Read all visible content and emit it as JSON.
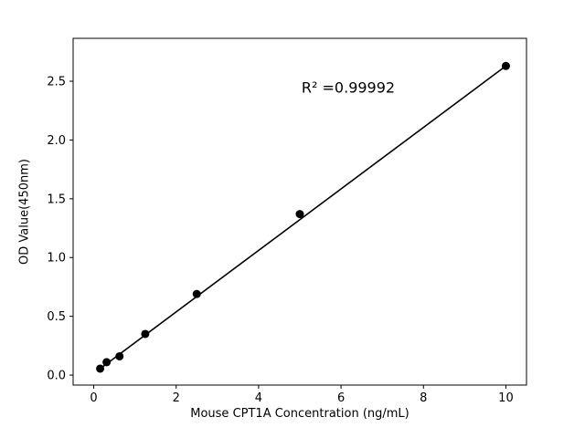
{
  "chart_data": {
    "type": "scatter",
    "title": "",
    "xlabel": "Mouse CPT1A Concentration (ng/mL)",
    "ylabel": "OD Value(450nm)",
    "annotation": "R² =0.99992",
    "x": [
      0.156,
      0.3125,
      0.625,
      1.25,
      2.5,
      5,
      10
    ],
    "y": [
      0.055,
      0.11,
      0.16,
      0.35,
      0.69,
      1.37,
      2.63
    ],
    "fit_line": {
      "x1": 0.156,
      "y1": 0.055,
      "x2": 10,
      "y2": 2.63
    },
    "xlim": [
      -0.5,
      10.5
    ],
    "ylim": [
      -0.085,
      2.865
    ],
    "xticks": [
      0,
      2,
      4,
      6,
      8,
      10
    ],
    "xtick_labels": [
      "0",
      "2",
      "4",
      "6",
      "8",
      "10"
    ],
    "yticks": [
      0.0,
      0.5,
      1.0,
      1.5,
      2.0,
      2.5
    ],
    "ytick_labels": [
      "0.0",
      "0.5",
      "1.0",
      "1.5",
      "2.0",
      "2.5"
    ],
    "marker_color": "#000000",
    "line_color": "#000000",
    "axis_color": "#000000",
    "background_color": "#ffffff",
    "grid": false,
    "legend": null
  }
}
